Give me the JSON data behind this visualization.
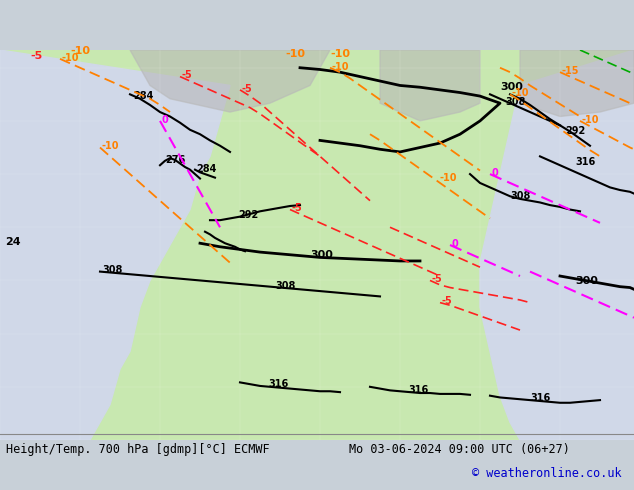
{
  "title_left": "Height/Temp. 700 hPa [gdmp][°C] ECMWF",
  "title_right": "Mo 03-06-2024 09:00 UTC (06+27)",
  "copyright": "© weatheronline.co.uk",
  "bg_color": "#d0d8e8",
  "land_color": "#c8e8b0",
  "ocean_color": "#d0d8e8",
  "gray_color": "#b0b0b0",
  "title_fontsize": 9,
  "copyright_color": "#0000cc",
  "height_contour_color": "#000000",
  "temp_neg_color_1": "#ff2020",
  "temp_neg_color_2": "#ff8000",
  "temp_zero_color": "#ff00ff",
  "temp_pos_color": "#00aa00"
}
